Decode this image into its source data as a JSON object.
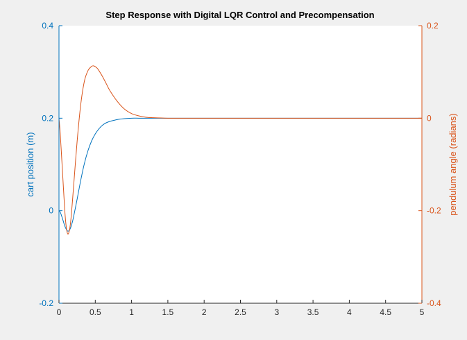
{
  "colors": {
    "background": "#f0f0f0",
    "plot_background": "#ffffff",
    "left_axis": "#0072bd",
    "right_axis": "#d95319",
    "bottom_axis": "#262626",
    "title": "#000000"
  },
  "chart_data": {
    "type": "line",
    "title": "Step Response with Digital LQR Control and Precompensation",
    "xlabel": "",
    "ylabel_left": "cart position (m)",
    "ylabel_right": "pendulum angle (radians)",
    "xlim": [
      0,
      5
    ],
    "ylim_left": [
      -0.2,
      0.4
    ],
    "ylim_right": [
      -0.4,
      0.2
    ],
    "x_ticks": [
      "0",
      "0.5",
      "1",
      "1.5",
      "2",
      "2.5",
      "3",
      "3.5",
      "4",
      "4.5",
      "5"
    ],
    "y_ticks_left": [
      "-0.2",
      "0",
      "0.2",
      "0.4"
    ],
    "y_ticks_right": [
      "-0.4",
      "-0.2",
      "0",
      "0.2"
    ],
    "grid": false,
    "legend": "none",
    "series": [
      {
        "axis": "left",
        "color": "#0072bd",
        "x": [
          0,
          0.02,
          0.05,
          0.08,
          0.1,
          0.12,
          0.14,
          0.16,
          0.18,
          0.2,
          0.25,
          0.3,
          0.35,
          0.4,
          0.45,
          0.5,
          0.55,
          0.6,
          0.65,
          0.7,
          0.8,
          0.9,
          1.0,
          1.1,
          1.2,
          1.3,
          1.5,
          2.0,
          3.0,
          4.0,
          5.0
        ],
        "y": [
          0,
          -0.004,
          -0.018,
          -0.033,
          -0.04,
          -0.044,
          -0.043,
          -0.037,
          -0.027,
          -0.014,
          0.025,
          0.066,
          0.102,
          0.13,
          0.151,
          0.166,
          0.177,
          0.185,
          0.19,
          0.193,
          0.197,
          0.199,
          0.2,
          0.2,
          0.2,
          0.2,
          0.2,
          0.2,
          0.2,
          0.2,
          0.2
        ]
      },
      {
        "axis": "right",
        "color": "#d95319",
        "x": [
          0,
          0.02,
          0.05,
          0.08,
          0.1,
          0.12,
          0.14,
          0.16,
          0.18,
          0.2,
          0.25,
          0.3,
          0.35,
          0.4,
          0.45,
          0.48,
          0.52,
          0.55,
          0.6,
          0.65,
          0.7,
          0.8,
          0.9,
          1.0,
          1.1,
          1.2,
          1.3,
          1.5,
          1.7,
          2.0,
          3.0,
          4.0,
          5.0
        ],
        "y": [
          0,
          -0.04,
          -0.12,
          -0.2,
          -0.235,
          -0.25,
          -0.245,
          -0.225,
          -0.19,
          -0.15,
          -0.05,
          0.03,
          0.08,
          0.103,
          0.112,
          0.113,
          0.109,
          0.103,
          0.09,
          0.075,
          0.06,
          0.037,
          0.02,
          0.01,
          0.005,
          0.002,
          0.001,
          0,
          0,
          0,
          0,
          0,
          0
        ]
      }
    ]
  }
}
